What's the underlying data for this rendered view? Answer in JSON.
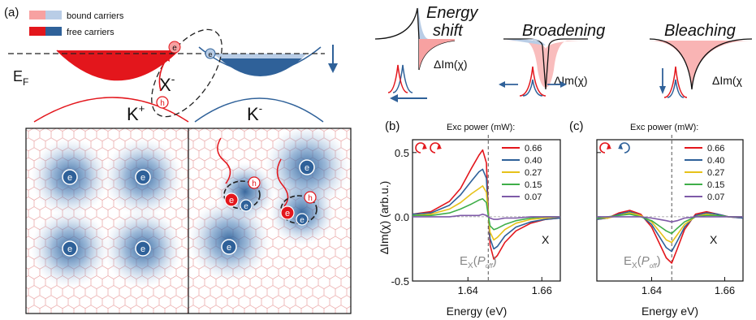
{
  "panel_a": {
    "label": "(a)",
    "legend": {
      "bound": "bound carriers",
      "free": "free carriers",
      "bound_colors": [
        "#f7a1a1",
        "#b9cde6"
      ],
      "free_colors": [
        "#e3161c",
        "#2f6199"
      ]
    },
    "ef_main": "E",
    "ef_sub": "F",
    "trion_main": "X",
    "trion_sup": "-",
    "valley_plus_main": "K",
    "valley_plus_sup": "+",
    "valley_minus_main": "K",
    "valley_minus_sup": "-",
    "electron": "e",
    "hole": "h",
    "colors": {
      "red": "#e3161c",
      "blue": "#2f6199",
      "light_blue": "#b9cde6",
      "lattice": "#e8a0a0"
    }
  },
  "schematics": [
    {
      "title_line1": "Energy",
      "title_line2": "shift",
      "ylabel": "ΔIm(χ)"
    },
    {
      "title_line1": "Broadening",
      "title_line2": "",
      "ylabel": "ΔIm(χ)"
    },
    {
      "title_line1": "Bleaching",
      "title_line2": "",
      "ylabel": "ΔIm(χ"
    }
  ],
  "plot_b": {
    "label": "(b)",
    "legend_title": "Exc power (mW):",
    "marker": "X",
    "ex_main": "E",
    "ex_sub": "X",
    "ex_arg": "P",
    "ex_arg_sub": "off",
    "xlabel": "Energy (eV)",
    "ylabel": "ΔIm(χ) (arb.u.)"
  },
  "plot_c": {
    "label": "(c)",
    "legend_title": "Exc power (mW):",
    "marker": "X",
    "ex_main": "E",
    "ex_sub": "X",
    "ex_arg": "P",
    "ex_arg_sub": "off",
    "xlabel": "Energy eV)",
    "ylabel": ""
  },
  "chart_data": [
    {
      "type": "line",
      "title": "",
      "xlabel": "Energy (eV)",
      "ylabel": "ΔIm(χ) (arb.u.)",
      "xlim": [
        1.625,
        1.665
      ],
      "ylim": [
        -0.5,
        0.6
      ],
      "xticks": [
        1.64,
        1.66
      ],
      "yticks": [
        -0.5,
        0.0,
        0.5
      ],
      "xtick_labels": [
        "1.64",
        "1.66"
      ],
      "ytick_labels": [
        "-0.5",
        "0.0",
        "0.5"
      ],
      "legend_position": "top-right",
      "dashed_line_x": 1.6455,
      "series": [
        {
          "name": "0.66",
          "color": "#e3161c",
          "x": [
            1.625,
            1.63,
            1.635,
            1.638,
            1.641,
            1.643,
            1.644,
            1.645,
            1.6455,
            1.646,
            1.647,
            1.648,
            1.65,
            1.653,
            1.657,
            1.661,
            1.665
          ],
          "y": [
            0.02,
            0.04,
            0.12,
            0.22,
            0.38,
            0.48,
            0.52,
            0.42,
            0.05,
            -0.22,
            -0.33,
            -0.3,
            -0.2,
            -0.11,
            -0.05,
            -0.02,
            -0.01
          ]
        },
        {
          "name": "0.40",
          "color": "#2f6199",
          "x": [
            1.625,
            1.63,
            1.635,
            1.638,
            1.641,
            1.643,
            1.644,
            1.645,
            1.6455,
            1.646,
            1.647,
            1.648,
            1.65,
            1.653,
            1.657,
            1.661,
            1.665
          ],
          "y": [
            0.02,
            0.03,
            0.09,
            0.17,
            0.28,
            0.35,
            0.37,
            0.3,
            0.03,
            -0.17,
            -0.25,
            -0.23,
            -0.15,
            -0.08,
            -0.04,
            -0.02,
            -0.01
          ]
        },
        {
          "name": "0.27",
          "color": "#e6c21a",
          "x": [
            1.625,
            1.63,
            1.635,
            1.638,
            1.641,
            1.643,
            1.644,
            1.645,
            1.6455,
            1.646,
            1.647,
            1.648,
            1.65,
            1.653,
            1.657,
            1.661,
            1.665
          ],
          "y": [
            0.01,
            0.02,
            0.06,
            0.11,
            0.18,
            0.22,
            0.24,
            0.19,
            0.02,
            -0.12,
            -0.18,
            -0.16,
            -0.1,
            -0.05,
            -0.02,
            -0.01,
            0.0
          ]
        },
        {
          "name": "0.15",
          "color": "#3fae49",
          "x": [
            1.625,
            1.63,
            1.635,
            1.638,
            1.641,
            1.643,
            1.644,
            1.645,
            1.6455,
            1.646,
            1.647,
            1.648,
            1.65,
            1.653,
            1.657,
            1.661,
            1.665
          ],
          "y": [
            0.01,
            0.01,
            0.03,
            0.06,
            0.1,
            0.13,
            0.14,
            0.11,
            0.01,
            -0.07,
            -0.1,
            -0.09,
            -0.06,
            -0.03,
            -0.01,
            0.0,
            0.0
          ]
        },
        {
          "name": "0.07",
          "color": "#7e5aa8",
          "x": [
            1.625,
            1.63,
            1.635,
            1.638,
            1.641,
            1.643,
            1.644,
            1.645,
            1.6455,
            1.646,
            1.647,
            1.648,
            1.65,
            1.653,
            1.657,
            1.661,
            1.665
          ],
          "y": [
            0.0,
            0.0,
            0.0,
            0.01,
            0.01,
            0.01,
            0.02,
            0.01,
            0.0,
            -0.01,
            -0.02,
            -0.02,
            -0.01,
            -0.01,
            0.0,
            0.0,
            0.0
          ]
        }
      ]
    },
    {
      "type": "line",
      "title": "",
      "xlabel": "Energy eV)",
      "ylabel": "",
      "xlim": [
        1.625,
        1.665
      ],
      "ylim": [
        -0.5,
        0.6
      ],
      "xticks": [
        1.64,
        1.66
      ],
      "yticks": [
        -0.5,
        0.0,
        0.5
      ],
      "xtick_labels": [
        "1.64",
        "1.66"
      ],
      "ytick_labels": [],
      "legend_position": "top-right",
      "dashed_line_x": 1.6455,
      "series": [
        {
          "name": "0.66",
          "color": "#e3161c",
          "x": [
            1.625,
            1.628,
            1.631,
            1.634,
            1.637,
            1.64,
            1.642,
            1.644,
            1.6455,
            1.647,
            1.649,
            1.652,
            1.655,
            1.658,
            1.661,
            1.665
          ],
          "y": [
            -0.02,
            -0.01,
            0.03,
            0.05,
            0.02,
            -0.08,
            -0.2,
            -0.32,
            -0.36,
            -0.25,
            -0.1,
            0.02,
            0.04,
            0.02,
            0.0,
            -0.01
          ]
        },
        {
          "name": "0.40",
          "color": "#2f6199",
          "x": [
            1.625,
            1.628,
            1.631,
            1.634,
            1.637,
            1.64,
            1.642,
            1.644,
            1.6455,
            1.647,
            1.649,
            1.652,
            1.655,
            1.658,
            1.661,
            1.665
          ],
          "y": [
            -0.02,
            -0.01,
            0.02,
            0.04,
            0.01,
            -0.06,
            -0.15,
            -0.24,
            -0.27,
            -0.19,
            -0.08,
            0.01,
            0.03,
            0.02,
            0.0,
            -0.01
          ]
        },
        {
          "name": "0.27",
          "color": "#e6c21a",
          "x": [
            1.625,
            1.628,
            1.631,
            1.634,
            1.637,
            1.64,
            1.642,
            1.644,
            1.6455,
            1.647,
            1.649,
            1.652,
            1.655,
            1.658,
            1.661,
            1.665
          ],
          "y": [
            -0.01,
            -0.01,
            0.01,
            0.03,
            0.01,
            -0.04,
            -0.11,
            -0.18,
            -0.2,
            -0.14,
            -0.06,
            0.0,
            0.02,
            0.01,
            0.0,
            0.0
          ]
        },
        {
          "name": "0.15",
          "color": "#3fae49",
          "x": [
            1.625,
            1.628,
            1.631,
            1.634,
            1.637,
            1.64,
            1.642,
            1.644,
            1.6455,
            1.647,
            1.649,
            1.652,
            1.655,
            1.658,
            1.661,
            1.665
          ],
          "y": [
            -0.01,
            0.0,
            0.01,
            0.02,
            0.0,
            -0.03,
            -0.07,
            -0.11,
            -0.13,
            -0.09,
            -0.04,
            0.0,
            0.01,
            0.01,
            0.0,
            0.0
          ]
        },
        {
          "name": "0.07",
          "color": "#7e5aa8",
          "x": [
            1.625,
            1.628,
            1.631,
            1.634,
            1.637,
            1.64,
            1.642,
            1.644,
            1.6455,
            1.647,
            1.649,
            1.652,
            1.655,
            1.658,
            1.661,
            1.665
          ],
          "y": [
            0.0,
            0.0,
            0.0,
            0.0,
            0.0,
            -0.01,
            -0.02,
            -0.03,
            -0.04,
            -0.03,
            -0.01,
            0.0,
            0.0,
            0.0,
            0.0,
            0.0
          ]
        }
      ]
    }
  ]
}
